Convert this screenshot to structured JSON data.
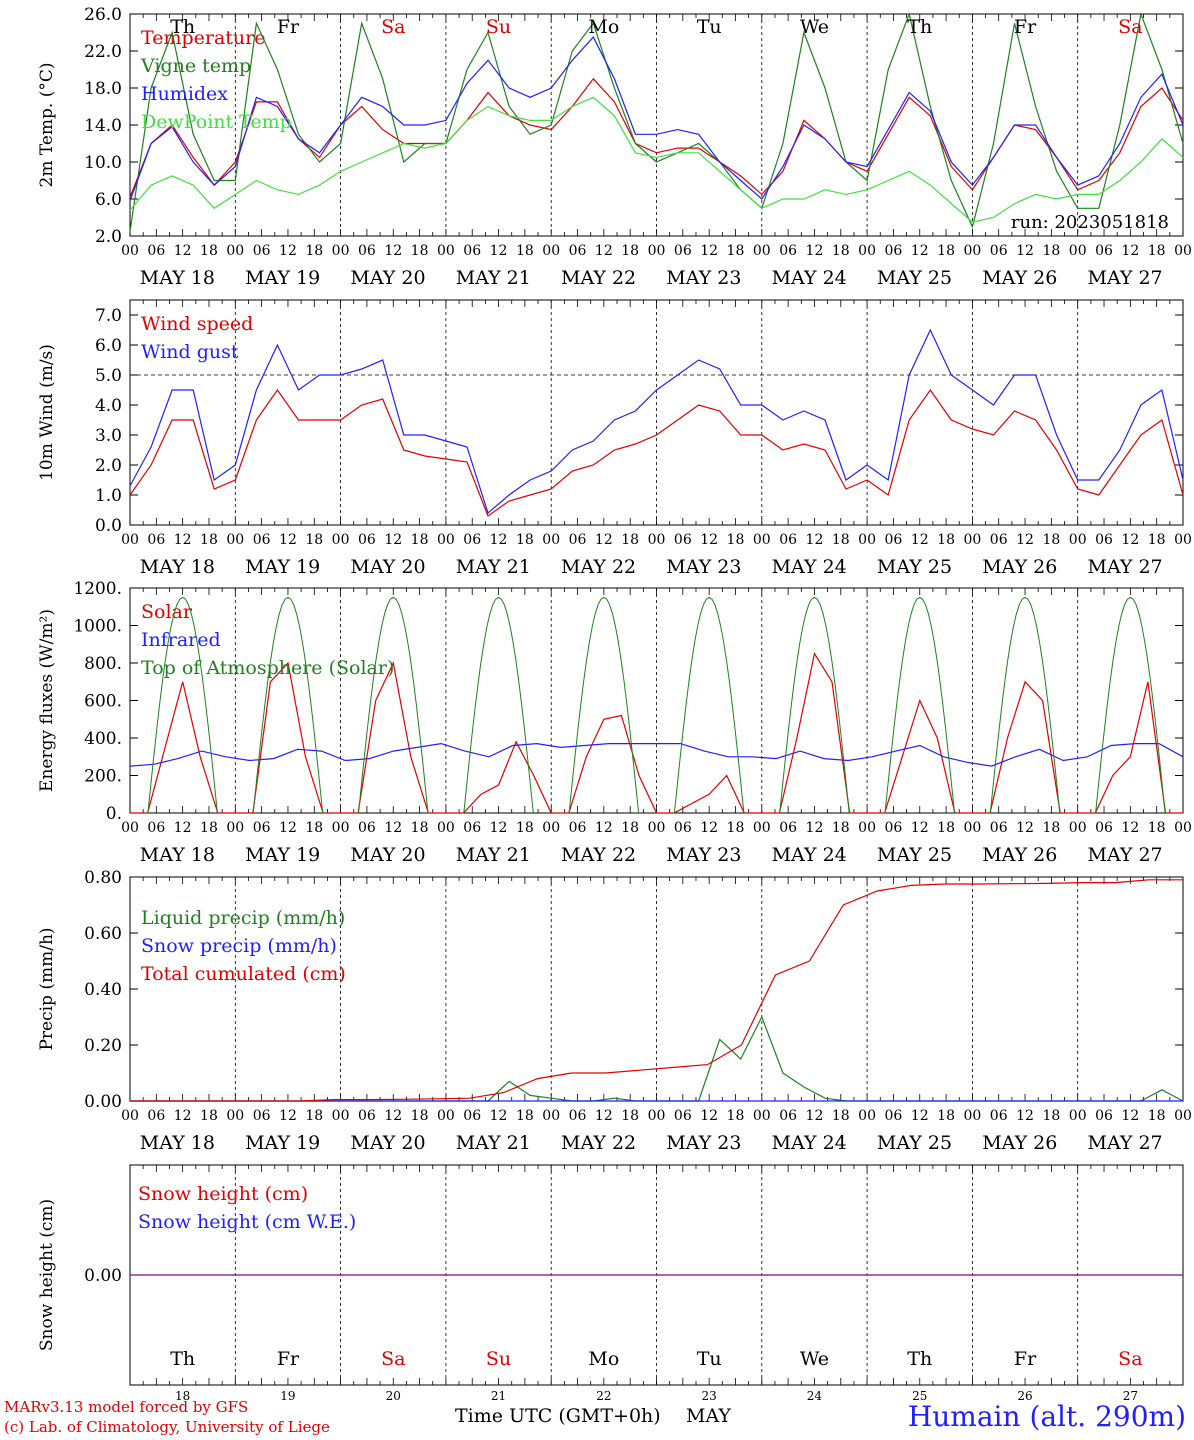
{
  "chart_data": [
    {
      "type": "line",
      "ylabel": "2m Temp. (°C)",
      "ylim": [
        2.0,
        26.0
      ],
      "yticks": [
        "2.0",
        "6.0",
        "10.0",
        "14.0",
        "18.0",
        "22.0",
        "26.0"
      ],
      "days": [
        "Th",
        "Fr",
        "Sa",
        "Su",
        "Mo",
        "Tu",
        "We",
        "Th",
        "Fr",
        "Sa"
      ],
      "day_colors": [
        "#000000",
        "#000000",
        "#e00000",
        "#e00000",
        "#000000",
        "#000000",
        "#000000",
        "#000000",
        "#000000",
        "#e00000"
      ],
      "note": "run: 2023051818",
      "grid": "dotted vertical day separators",
      "series": [
        {
          "name": "Temperature",
          "color": "#e00000",
          "values": [
            6.2,
            12,
            14,
            10.5,
            7.5,
            10,
            16.5,
            16.5,
            12.5,
            10.5,
            14,
            16,
            13.5,
            12,
            12,
            12,
            14.5,
            17.5,
            15,
            14,
            13.5,
            16,
            19,
            16.5,
            12,
            11,
            11.5,
            11.5,
            10,
            8.5,
            6.5,
            9,
            14.5,
            12.5,
            10,
            9,
            13,
            17,
            15,
            9.5,
            7,
            10.5,
            14,
            13.5,
            10.5,
            7,
            8,
            11,
            16,
            18,
            14.5
          ]
        },
        {
          "name": "Vigne temp",
          "color": "#208020",
          "values": [
            2.5,
            18,
            24,
            13,
            8,
            8,
            25,
            20,
            13,
            10,
            12,
            25,
            19,
            10,
            12,
            12,
            20,
            24,
            16,
            13,
            14,
            22,
            25,
            18,
            12,
            10,
            11,
            12,
            10,
            7,
            5,
            12,
            24,
            18,
            10,
            8,
            20,
            26,
            16,
            8,
            3,
            12,
            25,
            16,
            9,
            5,
            5,
            14,
            26,
            20,
            12
          ]
        },
        {
          "name": "Humidex",
          "color": "#2020ff",
          "values": [
            5.8,
            12,
            13.8,
            10,
            7.5,
            9.5,
            17,
            16,
            12.5,
            11,
            14,
            17,
            16,
            14,
            14,
            14.5,
            18.5,
            21,
            18,
            17,
            18,
            21,
            23.5,
            19,
            13,
            13,
            13.5,
            13,
            10,
            8,
            6,
            9.5,
            14,
            12.5,
            10,
            9.5,
            13.5,
            17.5,
            15.5,
            10,
            7.5,
            10.5,
            14,
            14,
            10.5,
            7.5,
            8.5,
            12,
            17,
            19.5,
            14
          ]
        },
        {
          "name": "DewPoint Temp",
          "color": "#40e040",
          "values": [
            4.8,
            7.5,
            8.5,
            7.5,
            5,
            6.5,
            8,
            7,
            6.5,
            7.5,
            9,
            10,
            11,
            12,
            11.5,
            12,
            14.5,
            16,
            15,
            14.5,
            14.5,
            16,
            17,
            15,
            11,
            10.5,
            11,
            11,
            9,
            7,
            5,
            6,
            6,
            7,
            6.5,
            7,
            8,
            9,
            7.5,
            5.5,
            3.5,
            4,
            5.5,
            6.5,
            6,
            6.5,
            6.5,
            8,
            10,
            12.5,
            10.5
          ]
        }
      ]
    },
    {
      "type": "line",
      "ylabel": "10m Wind (m/s)",
      "ylim": [
        0.0,
        7.5
      ],
      "yticks": [
        "0.0",
        "1.0",
        "2.0",
        "3.0",
        "4.0",
        "5.0",
        "6.0",
        "7.0"
      ],
      "ref_line": 5.0,
      "series": [
        {
          "name": "Wind speed",
          "color": "#e00000",
          "values": [
            1.0,
            2.0,
            3.5,
            3.5,
            1.2,
            1.5,
            3.5,
            4.5,
            3.5,
            3.5,
            3.5,
            4.0,
            4.2,
            2.5,
            2.3,
            2.2,
            2.1,
            0.3,
            0.8,
            1.0,
            1.2,
            1.8,
            2.0,
            2.5,
            2.7,
            3.0,
            3.5,
            4.0,
            3.8,
            3.0,
            3.0,
            2.5,
            2.7,
            2.5,
            1.2,
            1.5,
            1.0,
            3.5,
            4.5,
            3.5,
            3.2,
            3.0,
            3.8,
            3.5,
            2.5,
            1.2,
            1.0,
            2.0,
            3.0,
            3.5,
            1.0
          ]
        },
        {
          "name": "Wind gust",
          "color": "#2020ff",
          "values": [
            1.3,
            2.6,
            4.5,
            4.5,
            1.5,
            2.0,
            4.5,
            6.0,
            4.5,
            5.0,
            5.0,
            5.2,
            5.5,
            3.0,
            3.0,
            2.8,
            2.6,
            0.4,
            1.0,
            1.5,
            1.8,
            2.5,
            2.8,
            3.5,
            3.8,
            4.5,
            5.0,
            5.5,
            5.2,
            4.0,
            4.0,
            3.5,
            3.8,
            3.5,
            1.5,
            2.0,
            1.5,
            5.0,
            6.5,
            5.0,
            4.5,
            4.0,
            5.0,
            5.0,
            3.0,
            1.5,
            1.5,
            2.5,
            4.0,
            4.5,
            1.5
          ]
        }
      ]
    },
    {
      "type": "line",
      "ylabel": "Energy fluxes (W/m²)",
      "ylim": [
        0,
        1200
      ],
      "yticks": [
        "0.",
        "200.",
        "400.",
        "600.",
        "800.",
        "1000.",
        "1200."
      ],
      "series": [
        {
          "name": "Solar",
          "color": "#e00000",
          "values": [
            0,
            0,
            350,
            700,
            300,
            0,
            0,
            0,
            700,
            800,
            300,
            0,
            0,
            0,
            600,
            800,
            300,
            0,
            0,
            0,
            100,
            150,
            380,
            200,
            0,
            0,
            300,
            500,
            520,
            200,
            0,
            0,
            50,
            100,
            200,
            0,
            0,
            0,
            400,
            850,
            700,
            0,
            0,
            0,
            300,
            600,
            400,
            0,
            0,
            0,
            400,
            700,
            600,
            0,
            0,
            0,
            200,
            300,
            700,
            0,
            0
          ]
        },
        {
          "name": "Infrared",
          "color": "#2020ff",
          "values": [
            250,
            260,
            290,
            330,
            300,
            280,
            290,
            340,
            330,
            280,
            290,
            330,
            350,
            370,
            330,
            300,
            360,
            370,
            350,
            360,
            370,
            370,
            370,
            370,
            330,
            300,
            300,
            290,
            330,
            290,
            280,
            300,
            330,
            360,
            300,
            270,
            250,
            300,
            340,
            280,
            300,
            360,
            370,
            370,
            300
          ]
        },
        {
          "name": "Top of Atmosphere (Solar)",
          "color": "#208020",
          "values": [
            0,
            600,
            1000,
            1150,
            1000,
            600,
            0
          ]
        }
      ]
    },
    {
      "type": "line",
      "ylabel": "Precip (mm/h)",
      "ylim": [
        0.0,
        0.8
      ],
      "yticks": [
        "0.00",
        "0.20",
        "0.40",
        "0.60",
        "0.80"
      ],
      "series": [
        {
          "name": "Liquid precip (mm/h)",
          "color": "#208020",
          "values": [
            0,
            0,
            0,
            0,
            0,
            0,
            0,
            0,
            0,
            0,
            0,
            0,
            0,
            0,
            0,
            0,
            0,
            0,
            0.07,
            0.02,
            0.01,
            0,
            0,
            0.01,
            0,
            0,
            0,
            0,
            0.22,
            0.15,
            0.3,
            0.1,
            0.05,
            0.01,
            0,
            0,
            0,
            0,
            0,
            0,
            0,
            0,
            0,
            0,
            0,
            0,
            0,
            0,
            0,
            0.04,
            0
          ]
        },
        {
          "name": "Snow precip (mm/h)",
          "color": "#2020ff",
          "values": [
            0,
            0
          ]
        },
        {
          "name": "Total cumulated (cm)",
          "color": "#e00000",
          "values": [
            0,
            0,
            0,
            0,
            0,
            0,
            0.005,
            0.005,
            0.006,
            0.008,
            0.01,
            0.03,
            0.08,
            0.1,
            0.1,
            0.11,
            0.12,
            0.13,
            0.2,
            0.45,
            0.5,
            0.7,
            0.75,
            0.77,
            0.775,
            0.775,
            0.776,
            0.777,
            0.78,
            0.78,
            0.79,
            0.79
          ]
        }
      ]
    },
    {
      "type": "line",
      "ylabel": "Snow height (cm)",
      "yticks": [
        "0.00"
      ],
      "series": [
        {
          "name": "Snow height (cm)",
          "color": "#e00000",
          "values": [
            0,
            0
          ]
        },
        {
          "name": "Snow height (cm W.E.)",
          "color": "#2020ff",
          "values": [
            0,
            0
          ]
        }
      ]
    }
  ],
  "x_axis": {
    "hour_labels": [
      "00",
      "06",
      "12",
      "18"
    ],
    "final_label": "00",
    "date_labels": [
      "MAY 18",
      "MAY 19",
      "MAY 20",
      "MAY 21",
      "MAY 22",
      "MAY 23",
      "MAY 24",
      "MAY 25",
      "MAY 26",
      "MAY 27"
    ],
    "bottom_day_numbers": [
      "18",
      "19",
      "20",
      "21",
      "22",
      "23",
      "24",
      "25",
      "26",
      "27"
    ]
  },
  "footer": {
    "model": "MARv3.13 model forced by GFS",
    "lab": "(c) Lab. of Climatology, University of Liege",
    "xlabel": "Time UTC (GMT+0h)",
    "month": "MAY",
    "station": "Humain (alt. 290m)"
  }
}
